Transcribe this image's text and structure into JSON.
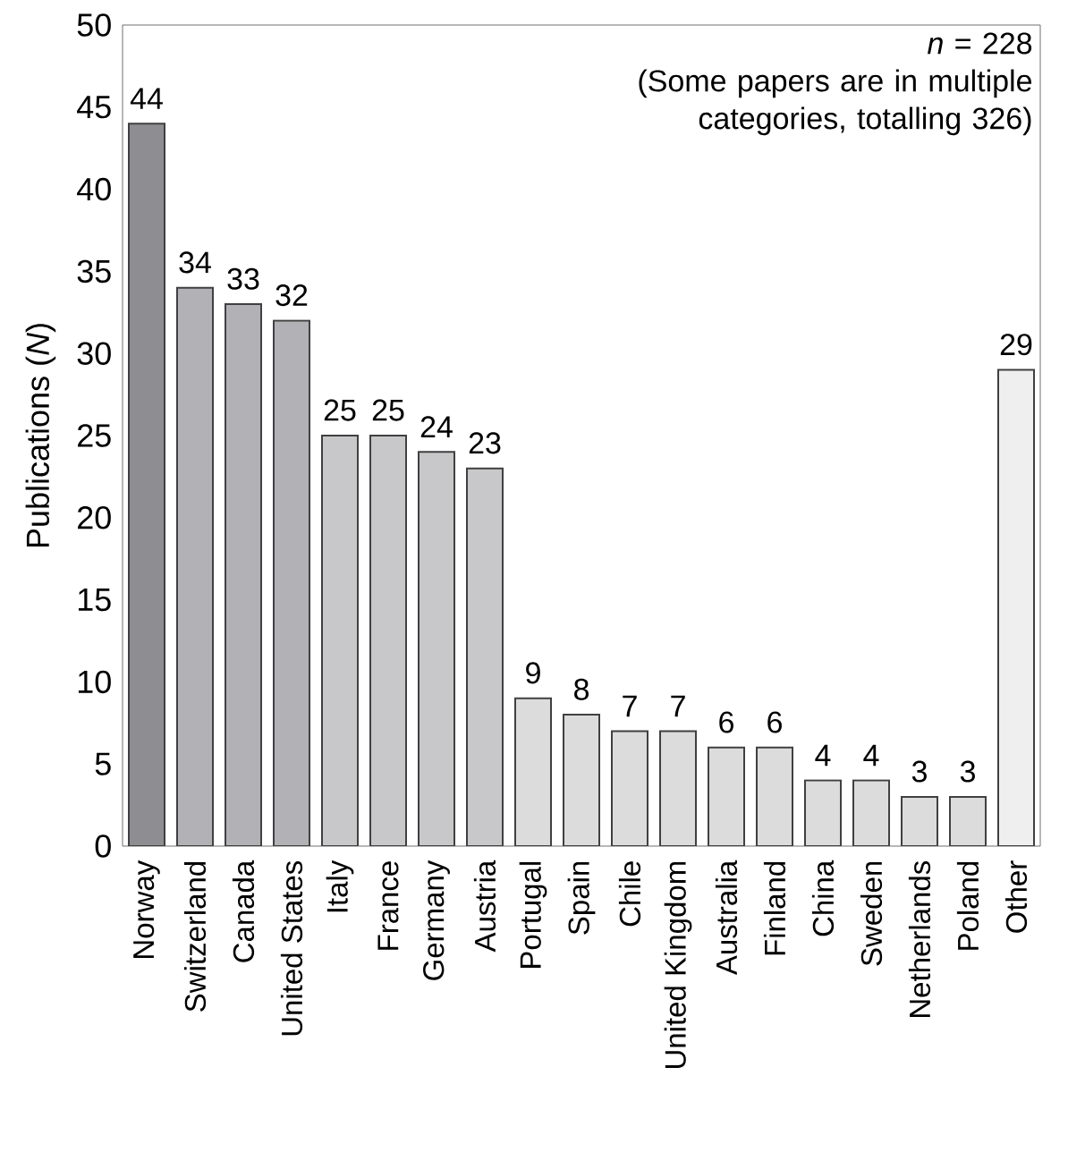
{
  "chart_data": {
    "type": "bar",
    "ylabel": "Publications (*N*)",
    "categories": [
      "Norway",
      "Switzerland",
      "Canada",
      "United States",
      "Italy",
      "France",
      "Germany",
      "Austria",
      "Portugal",
      "Spain",
      "Chile",
      "United Kingdom",
      "Australia",
      "Finland",
      "China",
      "Sweden",
      "Netherlands",
      "Poland",
      "Other"
    ],
    "values": [
      44,
      34,
      33,
      32,
      25,
      25,
      24,
      23,
      9,
      8,
      7,
      7,
      6,
      6,
      4,
      4,
      3,
      3,
      29
    ],
    "colors": [
      "#8e8e92",
      "#b2b2b6",
      "#b2b2b6",
      "#b2b2b6",
      "#c8c8ca",
      "#c8c8ca",
      "#c8c8ca",
      "#c8c8ca",
      "#dcdcdc",
      "#dcdcdc",
      "#dcdcdc",
      "#dcdcdc",
      "#dcdcdc",
      "#dcdcdc",
      "#dcdcdc",
      "#dcdcdc",
      "#dcdcdc",
      "#dcdcdc",
      "#efefef"
    ],
    "ylim": [
      0,
      50
    ],
    "yticks": [
      0,
      5,
      10,
      15,
      20,
      25,
      30,
      35,
      40,
      45,
      50
    ],
    "data_labels": true,
    "annotations": [
      "*n* = 228",
      "(Some papers are in multiple categories, totalling 326)"
    ]
  }
}
